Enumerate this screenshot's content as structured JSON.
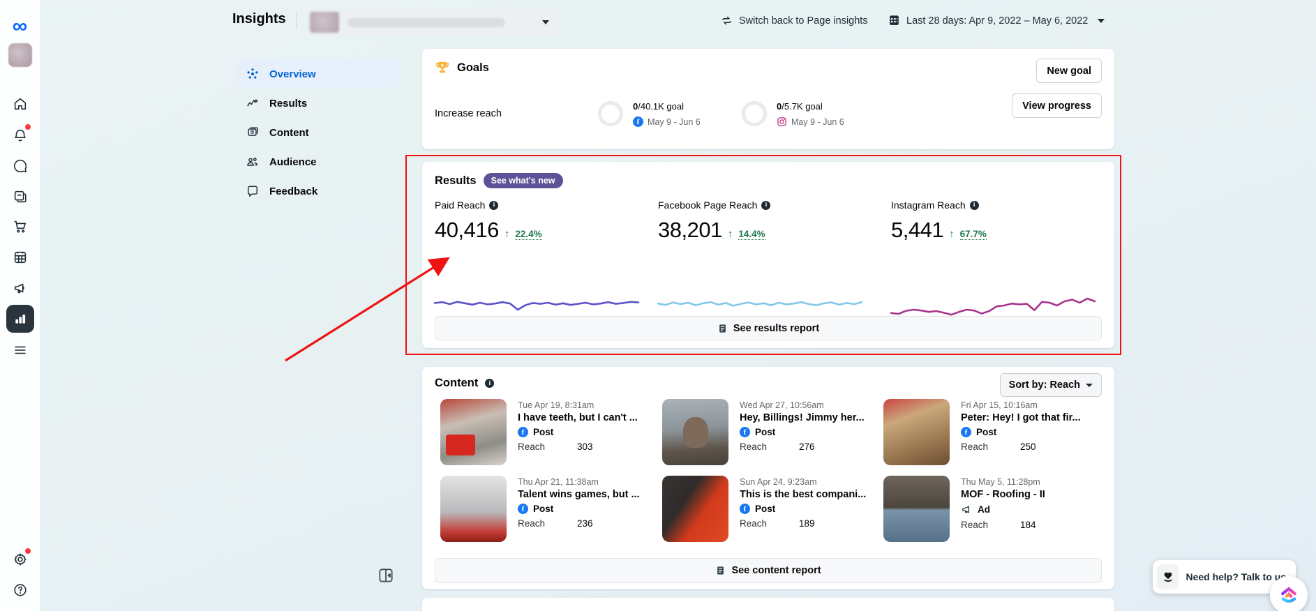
{
  "theme": {
    "meta_blue": "#0866ff",
    "link_blue": "#0064d1",
    "success_green": "#1f7a4d",
    "annotation_red": "#ee1212",
    "badge_purple": "#5d5298",
    "paid_line": "#5b51c9",
    "facebook_line": "#82c7e8",
    "instagram_line": "#a8348e"
  },
  "sidebar": {
    "icons": [
      "meta-logo",
      "business-avatar",
      "home",
      "notifications",
      "messages",
      "content",
      "commerce",
      "planner",
      "ads",
      "insights",
      "more"
    ],
    "bottom_icons": [
      "settings",
      "help"
    ],
    "selected": "insights"
  },
  "header": {
    "title": "Insights",
    "switch_label": "Switch back to Page insights",
    "date_label": "Last 28 days: Apr 9, 2022 – May 6, 2022"
  },
  "nav": {
    "items": [
      {
        "label": "Overview",
        "selected": true
      },
      {
        "label": "Results",
        "selected": false
      },
      {
        "label": "Content",
        "selected": false
      },
      {
        "label": "Audience",
        "selected": false
      },
      {
        "label": "Feedback",
        "selected": false
      }
    ]
  },
  "goals": {
    "title": "Goals",
    "new_goal_label": "New goal",
    "row_label": "Increase reach",
    "view_progress_label": "View progress",
    "entries": [
      {
        "value": "0",
        "target": "/40.1K goal",
        "platform": "facebook",
        "dates": "May 9 - Jun 6",
        "progress": 0
      },
      {
        "value": "0",
        "target": "/5.7K goal",
        "platform": "instagram",
        "dates": "May 9 - Jun 6",
        "progress": 0
      }
    ]
  },
  "results": {
    "title": "Results",
    "badge": "See what's new",
    "report_label": "See results report",
    "metrics": [
      {
        "label": "Paid Reach",
        "value": "40,416",
        "delta": "22.4%",
        "trend": "up",
        "sparkline": [
          54,
          57,
          50,
          58,
          53,
          48,
          55,
          49,
          52,
          57,
          52,
          30,
          46,
          54,
          51,
          55,
          48,
          53,
          47,
          51,
          55,
          49,
          52,
          57,
          51,
          54,
          58,
          56
        ]
      },
      {
        "label": "Facebook Page Reach",
        "value": "38,201",
        "delta": "14.4%",
        "trend": "up",
        "sparkline": [
          52,
          47,
          56,
          50,
          55,
          46,
          53,
          57,
          48,
          54,
          44,
          51,
          56,
          49,
          53,
          46,
          55,
          49,
          52,
          57,
          50,
          46,
          53,
          56,
          48,
          54,
          50,
          57
        ]
      },
      {
        "label": "Instagram Reach",
        "value": "5,441",
        "delta": "67.7%",
        "trend": "up",
        "sparkline": [
          18,
          15,
          26,
          30,
          27,
          22,
          25,
          19,
          12,
          22,
          30,
          27,
          16,
          25,
          42,
          45,
          52,
          49,
          51,
          28,
          58,
          55,
          45,
          60,
          66,
          55,
          70,
          60
        ]
      }
    ]
  },
  "content": {
    "title": "Content",
    "sort_label": "Sort by: Reach",
    "report_label": "See content report",
    "reach_label": "Reach",
    "posts": [
      {
        "date": "Tue Apr 19, 8:31am",
        "title": "I have teeth, but I can't ...",
        "type": "Post",
        "platform": "facebook",
        "reach": "303"
      },
      {
        "date": "Wed Apr 27, 10:56am",
        "title": "Hey, Billings! Jimmy her...",
        "type": "Post",
        "platform": "facebook",
        "reach": "276"
      },
      {
        "date": "Fri Apr 15, 10:16am",
        "title": "Peter: Hey! I got that fir...",
        "type": "Post",
        "platform": "facebook",
        "reach": "250"
      },
      {
        "date": "Thu Apr 21, 11:38am",
        "title": "Talent wins games, but ...",
        "type": "Post",
        "platform": "facebook",
        "reach": "236"
      },
      {
        "date": "Sun Apr 24, 9:23am",
        "title": "This is the best compani...",
        "type": "Post",
        "platform": "facebook",
        "reach": "189"
      },
      {
        "date": "Thu May 5, 11:28pm",
        "title": "MOF - Roofing - II",
        "type": "Ad",
        "platform": "ad",
        "reach": "184"
      }
    ]
  },
  "chat": {
    "label": "Need help? Talk to us."
  }
}
